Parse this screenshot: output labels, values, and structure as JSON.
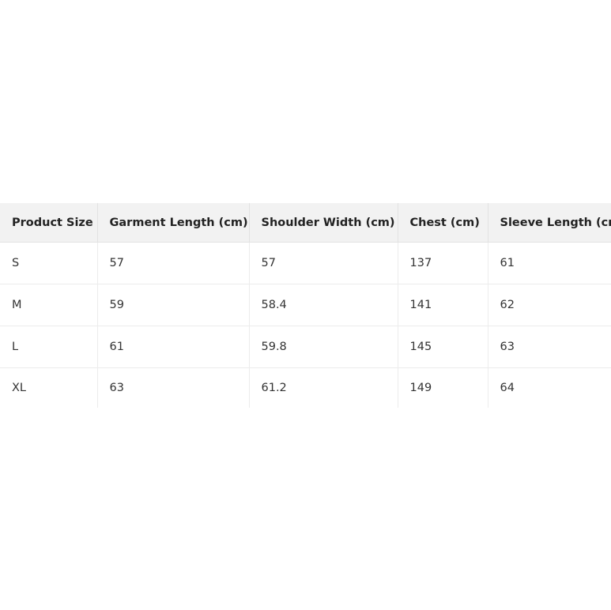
{
  "table": {
    "headers": [
      "Product Size",
      "Garment Length (cm)",
      "Shoulder Width (cm)",
      "Chest (cm)",
      "Sleeve Length (cm)"
    ],
    "rows": [
      [
        "S",
        "57",
        "57",
        "137",
        "61"
      ],
      [
        "M",
        "59",
        "58.4",
        "141",
        "62"
      ],
      [
        "L",
        "61",
        "59.8",
        "145",
        "63"
      ],
      [
        "XL",
        "63",
        "61.2",
        "149",
        "64"
      ]
    ]
  }
}
